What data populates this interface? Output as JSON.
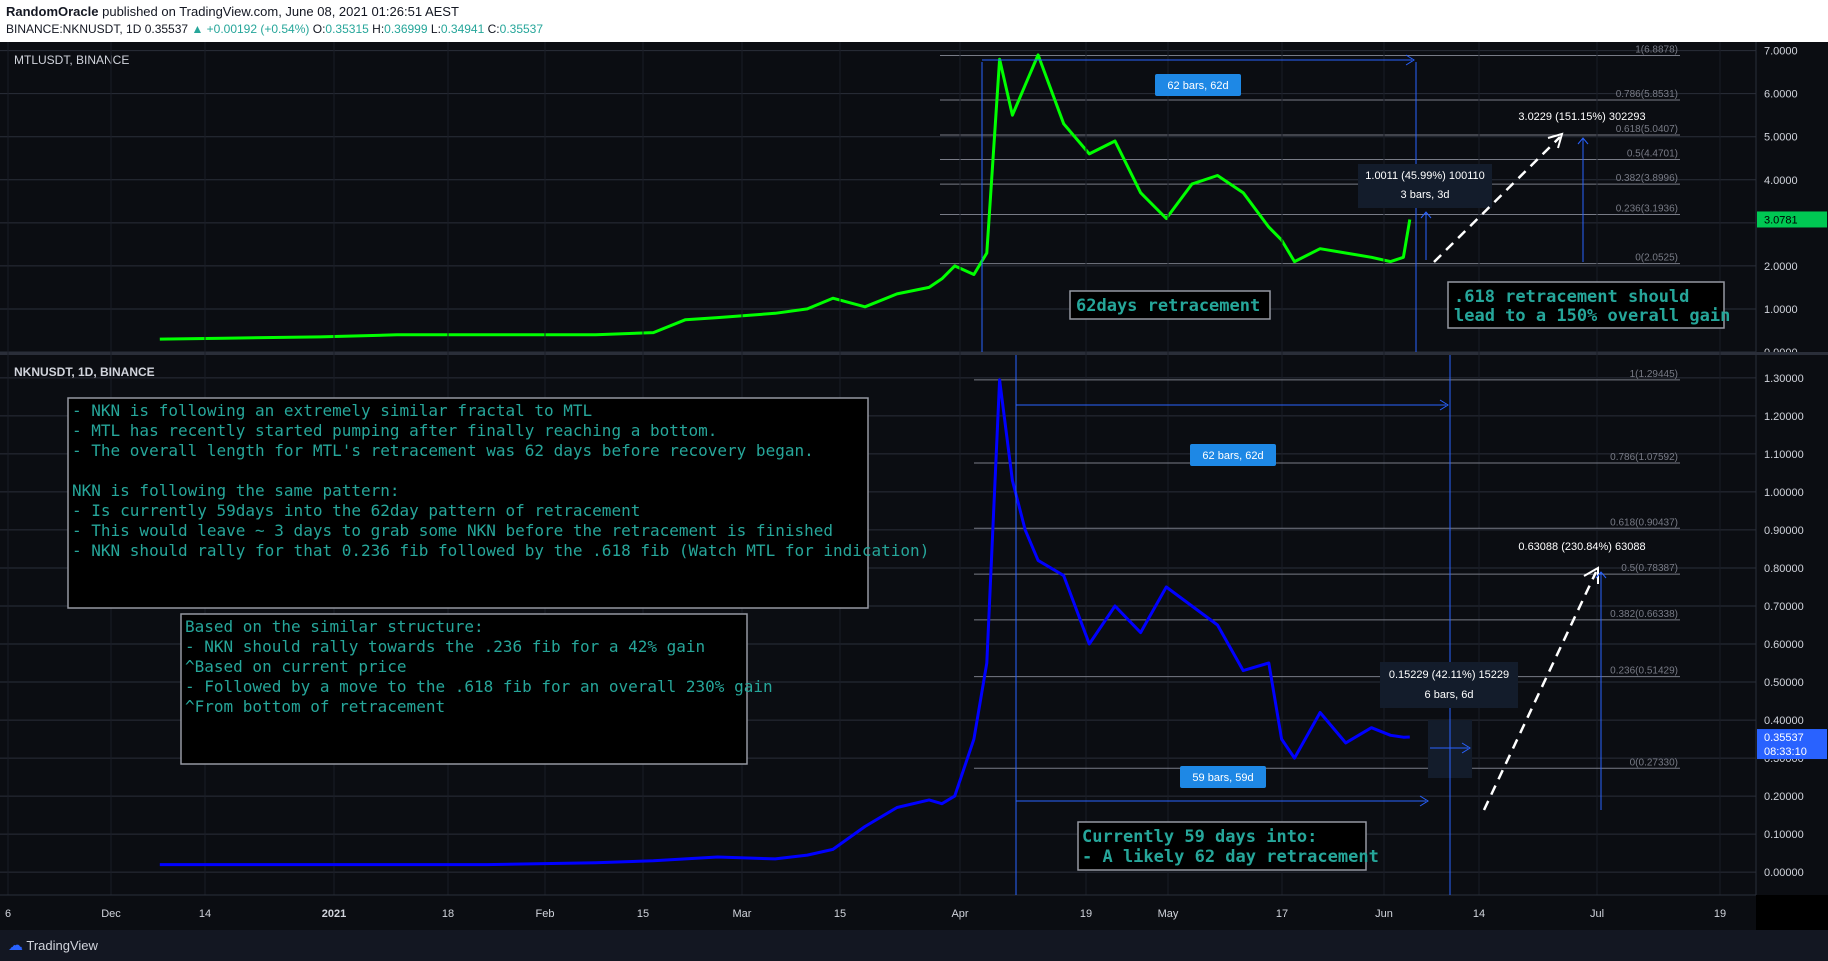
{
  "header": {
    "author": "RandomOracle",
    "published": "published on TradingView.com, June 08, 2021 01:26:51 AEST",
    "ticker": "BINANCE:NKNUSDT, 1D",
    "price": "0.35537",
    "change": "▲ +0.00192 (+0.54%)",
    "o_label": "O:",
    "o": "0.35315",
    "h_label": "H:",
    "h": "0.36999",
    "l_label": "L:",
    "l": "0.34941",
    "c_label": "C:",
    "c": "0.35537"
  },
  "footer": {
    "logo": "TradingView"
  },
  "colors": {
    "mtl_line": "#00ff00",
    "nkn_line": "#0000ff",
    "grid": "#2a2e39",
    "fib": "#787b86",
    "note_text": "#26a69a",
    "tag_blue": "#1e88e5"
  },
  "chart_data": [
    {
      "type": "line",
      "title": "MTLUSDT, BINANCE",
      "ylim": [
        0,
        7.2
      ],
      "y_ticks": [
        "7.0000",
        "6.0000",
        "5.0000",
        "4.0000",
        "3.0000",
        "2.0000",
        "1.0000",
        "0.0000"
      ],
      "last_price_tag": "3.0781",
      "x_dates": [
        "2020-11-25",
        "2020-12-05",
        "2020-12-20",
        "2021-01-01",
        "2021-01-15",
        "2021-02-01",
        "2021-02-10",
        "2021-02-15",
        "2021-02-20",
        "2021-03-01",
        "2021-03-06",
        "2021-03-10",
        "2021-03-15",
        "2021-03-20",
        "2021-03-25",
        "2021-03-27",
        "2021-03-29",
        "2021-04-01",
        "2021-04-03",
        "2021-04-05",
        "2021-04-07",
        "2021-04-09",
        "2021-04-11",
        "2021-04-15",
        "2021-04-19",
        "2021-04-23",
        "2021-04-27",
        "2021-05-01",
        "2021-05-05",
        "2021-05-09",
        "2021-05-13",
        "2021-05-17",
        "2021-05-19",
        "2021-05-21",
        "2021-05-25",
        "2021-05-29",
        "2021-06-02",
        "2021-06-05",
        "2021-06-07",
        "2021-06-08"
      ],
      "series": [
        {
          "values": [
            0.3,
            0.32,
            0.35,
            0.4,
            0.4,
            0.4,
            0.45,
            0.75,
            0.8,
            0.9,
            1.0,
            1.25,
            1.05,
            1.35,
            1.5,
            1.7,
            2.0,
            1.8,
            2.3,
            6.8,
            5.5,
            6.2,
            6.9,
            5.3,
            4.6,
            4.9,
            3.7,
            3.1,
            3.9,
            4.1,
            3.7,
            2.9,
            2.6,
            2.1,
            2.4,
            2.3,
            2.2,
            2.1,
            2.2,
            3.0781
          ]
        }
      ],
      "fib_levels": [
        {
          "label": "1(6.8878)",
          "value": 6.8878
        },
        {
          "label": "0.786(5.8531)",
          "value": 5.8531
        },
        {
          "label": "0.618(5.0407)",
          "value": 5.0407
        },
        {
          "label": "0.5(4.4701)",
          "value": 4.4701
        },
        {
          "label": "0.382(3.8996)",
          "value": 3.8996
        },
        {
          "label": "0.236(3.1936)",
          "value": 3.1936
        },
        {
          "label": "0(2.0525)",
          "value": 2.0525
        }
      ],
      "annotations": {
        "range_top": "62 bars, 62d",
        "measure_a": "1.0011 (45.99%) 100110",
        "measure_b": "3 bars, 3d",
        "target": "3.0229 (151.15%) 302293",
        "retracement_note": "62days retracement",
        "gain_note_1": ".618 retracement should",
        "gain_note_2": "lead to a 150% overall gain"
      }
    },
    {
      "type": "line",
      "title": "NKNUSDT, 1D, BINANCE",
      "ylim": [
        -0.06,
        1.36
      ],
      "y_ticks": [
        "1.30000",
        "1.20000",
        "1.10000",
        "1.00000",
        "0.90000",
        "0.80000",
        "0.70000",
        "0.60000",
        "0.50000",
        "0.40000",
        "0.30000",
        "0.20000",
        "0.10000",
        "0.00000"
      ],
      "last_price_tag": "0.35537",
      "last_price_timer": "08:33:10",
      "x_ticks": [
        "6",
        "Dec",
        "14",
        "2021",
        "18",
        "Feb",
        "15",
        "Mar",
        "15",
        "Apr",
        "19",
        "May",
        "17",
        "Jun",
        "14",
        "Jul",
        "19"
      ],
      "x_dates": [
        "2020-11-25",
        "2020-12-05",
        "2020-12-20",
        "2021-01-01",
        "2021-01-15",
        "2021-02-01",
        "2021-02-10",
        "2021-02-15",
        "2021-02-20",
        "2021-03-01",
        "2021-03-06",
        "2021-03-10",
        "2021-03-15",
        "2021-03-20",
        "2021-03-25",
        "2021-03-27",
        "2021-03-29",
        "2021-04-01",
        "2021-04-03",
        "2021-04-05",
        "2021-04-07",
        "2021-04-09",
        "2021-04-11",
        "2021-04-15",
        "2021-04-19",
        "2021-04-23",
        "2021-04-27",
        "2021-05-01",
        "2021-05-05",
        "2021-05-09",
        "2021-05-13",
        "2021-05-17",
        "2021-05-19",
        "2021-05-21",
        "2021-05-25",
        "2021-05-29",
        "2021-06-02",
        "2021-06-05",
        "2021-06-07",
        "2021-06-08"
      ],
      "series": [
        {
          "values": [
            0.02,
            0.02,
            0.02,
            0.02,
            0.02,
            0.025,
            0.03,
            0.035,
            0.04,
            0.035,
            0.045,
            0.06,
            0.12,
            0.17,
            0.19,
            0.18,
            0.2,
            0.35,
            0.55,
            1.2945,
            1.03,
            0.9,
            0.82,
            0.78,
            0.6,
            0.7,
            0.63,
            0.75,
            0.7,
            0.65,
            0.53,
            0.55,
            0.35,
            0.3,
            0.42,
            0.34,
            0.38,
            0.36,
            0.355,
            0.35537
          ]
        }
      ],
      "fib_levels": [
        {
          "label": "1(1.29445)",
          "value": 1.29445
        },
        {
          "label": "0.786(1.07592)",
          "value": 1.07592
        },
        {
          "label": "0.618(0.90437)",
          "value": 0.90437
        },
        {
          "label": "0.5(0.78387)",
          "value": 0.78387
        },
        {
          "label": "0.382(0.66338)",
          "value": 0.66338
        },
        {
          "label": "0.236(0.51429)",
          "value": 0.51429
        },
        {
          "label": "0(0.27330)",
          "value": 0.2733
        }
      ],
      "annotations": {
        "range_top": "62 bars, 62d",
        "range_bottom": "59 bars, 59d",
        "measure_a": "0.15229 (42.11%) 15229",
        "measure_b": "6 bars, 6d",
        "target": "0.63088 (230.84%) 63088",
        "box1": [
          "- NKN is following an extremely similar fractal to MTL",
          "- MTL has recently started pumping after finally reaching a bottom.",
          "- The overall length for MTL's retracement was 62 days before recovery began.",
          "",
          "NKN is following the same pattern:",
          "- Is currently 59days into the 62day pattern of retracement",
          "- This would leave ~ 3 days to grab some NKN before the retracement is finished",
          "- NKN should rally for that 0.236 fib followed by the .618 fib (Watch MTL for indication)"
        ],
        "box2": [
          "Based on the similar structure:",
          "- NKN should rally towards the .236 fib for a 42% gain",
          "^Based on current price",
          "- Followed by a move to the .618 fib for an overall 230% gain",
          "^From bottom of retracement"
        ],
        "box3": [
          "Currently 59 days into:",
          "- A likely 62 day retracement"
        ]
      }
    }
  ]
}
